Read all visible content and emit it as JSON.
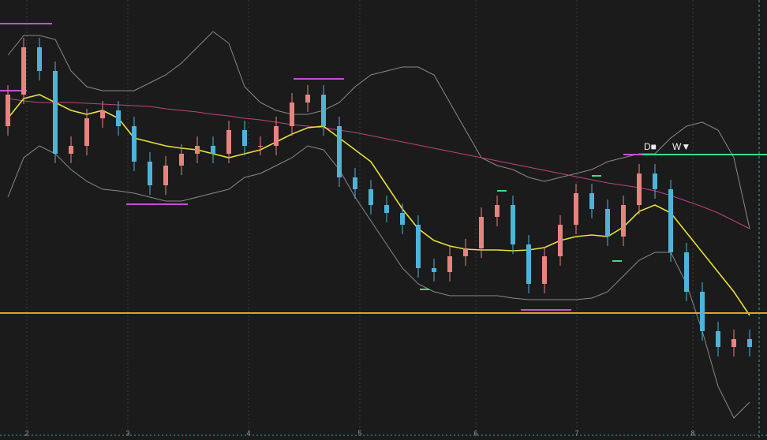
{
  "chart_data": {
    "type": "candlestick",
    "xlim": [
      -0.5,
      48.1
    ],
    "ylim": [
      0,
      558
    ],
    "xticks": [
      {
        "value": 1.2,
        "label": "2"
      },
      {
        "value": 7.6,
        "label": "3"
      },
      {
        "value": 15.25,
        "label": "4"
      },
      {
        "value": 22.3,
        "label": "5"
      },
      {
        "value": 29.65,
        "label": "6"
      },
      {
        "value": 36.05,
        "label": "7"
      },
      {
        "value": 43.4,
        "label": "8"
      }
    ],
    "up_color": "#e8837f",
    "down_color": "#4fb3d9",
    "open": [
      398,
      438,
      498,
      468,
      363,
      373,
      408,
      418,
      398,
      353,
      323,
      348,
      363,
      373,
      363,
      393,
      373,
      373,
      398,
      428,
      438,
      398,
      333,
      318,
      298,
      288,
      273,
      218,
      213,
      233,
      243,
      283,
      298,
      248,
      198,
      233,
      273,
      313,
      293,
      258,
      298,
      338,
      318,
      238,
      188,
      138,
      118,
      128
    ],
    "high": [
      450,
      510,
      510,
      480,
      385,
      420,
      430,
      430,
      410,
      365,
      360,
      375,
      385,
      385,
      405,
      405,
      385,
      410,
      440,
      450,
      450,
      410,
      345,
      330,
      310,
      300,
      285,
      230,
      245,
      255,
      295,
      310,
      310,
      260,
      245,
      285,
      325,
      325,
      305,
      310,
      350,
      350,
      330,
      250,
      200,
      150,
      140,
      140
    ],
    "low": [
      386,
      426,
      456,
      351,
      351,
      361,
      396,
      386,
      341,
      311,
      311,
      336,
      351,
      351,
      351,
      361,
      361,
      361,
      386,
      416,
      386,
      321,
      306,
      286,
      276,
      261,
      206,
      201,
      201,
      221,
      231,
      271,
      236,
      186,
      186,
      221,
      261,
      281,
      246,
      246,
      286,
      306,
      226,
      176,
      126,
      106,
      106,
      106
    ],
    "close": [
      438,
      498,
      468,
      363,
      373,
      408,
      418,
      398,
      353,
      323,
      348,
      363,
      373,
      363,
      393,
      373,
      373,
      398,
      428,
      438,
      398,
      333,
      318,
      298,
      288,
      273,
      218,
      213,
      233,
      243,
      283,
      298,
      248,
      198,
      233,
      273,
      313,
      293,
      258,
      298,
      338,
      318,
      238,
      188,
      138,
      118,
      128,
      118
    ],
    "overlays": [
      {
        "color": "#8a8a8a",
        "values": [
          488,
          513,
          513,
          508,
          468,
          448,
          443,
          443,
          443,
          453,
          463,
          478,
          498,
          518,
          503,
          448,
          428,
          418,
          413,
          413,
          418,
          428,
          448,
          463,
          468,
          473,
          473,
          463,
          428,
          393,
          358,
          348,
          343,
          333,
          328,
          333,
          338,
          343,
          353,
          358,
          363,
          363,
          383,
          398,
          403,
          393,
          358,
          268
        ]
      },
      {
        "color": "#8a8a8a",
        "values": [
          308,
          358,
          373,
          363,
          343,
          328,
          318,
          316,
          313,
          308,
          303,
          303,
          308,
          313,
          318,
          333,
          338,
          348,
          358,
          373,
          368,
          343,
          308,
          278,
          248,
          218,
          198,
          188,
          183,
          183,
          183,
          183,
          180,
          178,
          178,
          178,
          178,
          180,
          188,
          208,
          228,
          238,
          238,
          198,
          138,
          68,
          28,
          48
        ]
      },
      {
        "color": "#c2407f",
        "values": [
          433,
          430,
          428,
          428,
          428,
          427,
          426,
          425,
          424,
          423,
          420,
          418,
          416,
          413,
          411,
          408,
          406,
          403,
          400,
          398,
          396,
          393,
          390,
          386,
          382,
          378,
          374,
          370,
          366,
          362,
          358,
          354,
          350,
          346,
          342,
          338,
          334,
          330,
          326,
          323,
          320,
          316,
          310,
          303,
          296,
          288,
          278,
          268
        ]
      },
      {
        "color": "#e8e03a",
        "values": [
          408,
          433,
          438,
          428,
          418,
          413,
          418,
          408,
          383,
          378,
          373,
          370,
          368,
          363,
          358,
          363,
          368,
          378,
          388,
          396,
          398,
          383,
          368,
          353,
          323,
          293,
          268,
          253,
          246,
          242,
          241,
          241,
          240,
          241,
          244,
          253,
          258,
          260,
          258,
          270,
          290,
          298,
          288,
          263,
          238,
          213,
          188,
          158
        ]
      }
    ],
    "levels": [
      {
        "value": 161,
        "color": "#e0a030",
        "from": -0.5,
        "to": 48.1
      },
      {
        "value": 362,
        "color": "#3ddc84",
        "from": 40.2,
        "to": 48.1
      },
      {
        "value": 528,
        "color": "#c64fd6",
        "from": -0.5,
        "to": 2.8
      },
      {
        "value": 443,
        "color": "#c64fd6",
        "from": -0.5,
        "to": 1.2
      },
      {
        "value": 458,
        "color": "#c64fd6",
        "from": 18.1,
        "to": 21.3
      },
      {
        "value": 299,
        "color": "#c64fd6",
        "from": 7.5,
        "to": 11.4
      },
      {
        "value": 165,
        "color": "#c64fd6",
        "from": 32.5,
        "to": 35.7
      },
      {
        "value": 362,
        "color": "#c64fd6",
        "from": 39,
        "to": 40.2
      },
      {
        "value": 316,
        "color": "#3ddc84",
        "from": 31,
        "to": 31.6
      },
      {
        "value": 191,
        "color": "#3ddc84",
        "from": 26.1,
        "to": 26.7
      },
      {
        "value": 335,
        "color": "#3ddc84",
        "from": 37,
        "to": 37.6
      },
      {
        "value": 227,
        "color": "#3ddc84",
        "from": 38.3,
        "to": 38.9
      }
    ],
    "annotations": [
      {
        "text": "D■",
        "at": 40.3
      },
      {
        "text": "W▼",
        "at": 42.1
      }
    ]
  }
}
